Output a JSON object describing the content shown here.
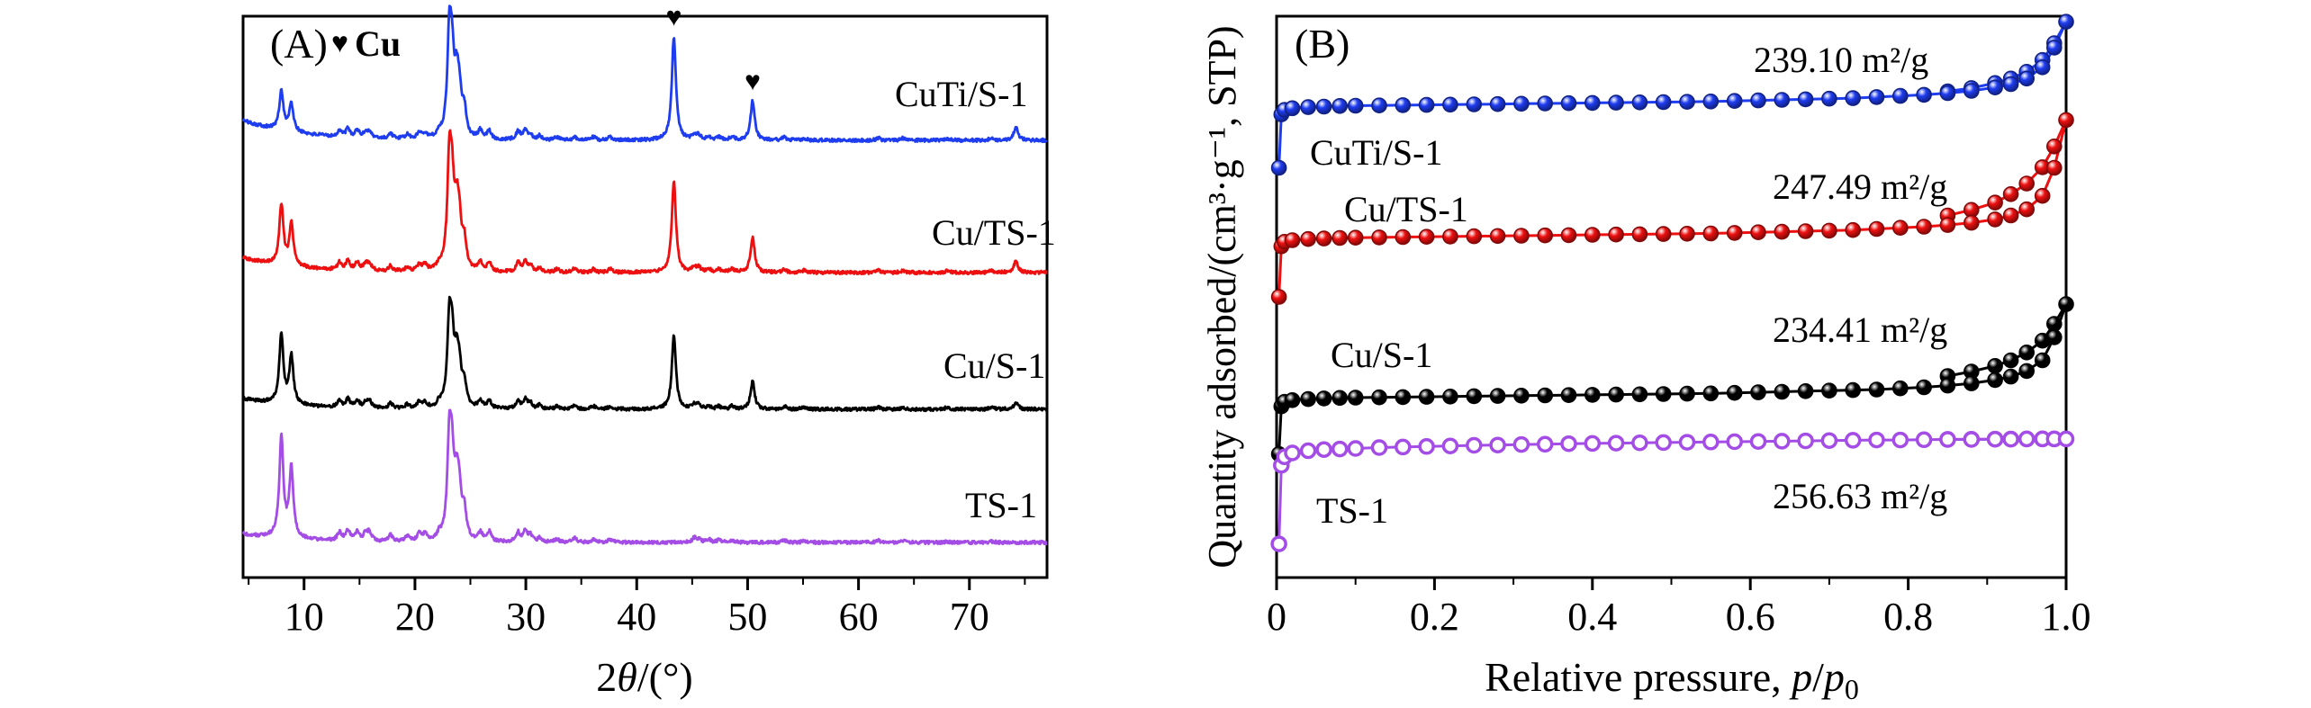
{
  "figure": {
    "background": "#ffffff"
  },
  "chart_data": [
    {
      "panel": "A",
      "type": "line",
      "panel_label": "(A)",
      "legend": {
        "marker": "♥",
        "label": "Cu"
      },
      "xlabel": "2θ/(°)",
      "xlabel_parts": [
        {
          "t": "2"
        },
        {
          "t": "θ",
          "italic": true
        },
        {
          "t": "/(°)"
        }
      ],
      "xlim": [
        4.5,
        77
      ],
      "x_ticks": [
        10,
        20,
        30,
        40,
        50,
        60,
        70
      ],
      "ylabel": "",
      "series": [
        {
          "name": "CuTi/S-1",
          "color": "#1e3cf0",
          "marked_cu_peaks": [
            43.35,
            50.45
          ],
          "peaks": [
            [
              7.95,
              38
            ],
            [
              8.85,
              27
            ],
            [
              13.2,
              6
            ],
            [
              13.95,
              8
            ],
            [
              14.8,
              7
            ],
            [
              15.55,
              5
            ],
            [
              15.9,
              6
            ],
            [
              17.8,
              5
            ],
            [
              19.3,
              4
            ],
            [
              20.4,
              6
            ],
            [
              20.9,
              5
            ],
            [
              22.2,
              5
            ],
            [
              23.1,
              92
            ],
            [
              23.35,
              62
            ],
            [
              23.75,
              44
            ],
            [
              24.0,
              36
            ],
            [
              24.45,
              25
            ],
            [
              25.9,
              8
            ],
            [
              26.7,
              8
            ],
            [
              29.3,
              8
            ],
            [
              29.95,
              9
            ],
            [
              30.4,
              5
            ],
            [
              31.25,
              4
            ],
            [
              32.8,
              3
            ],
            [
              34.4,
              3
            ],
            [
              36.1,
              3
            ],
            [
              37.6,
              3
            ],
            [
              43.35,
              100
            ],
            [
              45.2,
              5
            ],
            [
              45.6,
              4
            ],
            [
              46.5,
              3
            ],
            [
              47.4,
              3
            ],
            [
              48.6,
              3
            ],
            [
              50.45,
              38
            ],
            [
              53.3,
              3
            ],
            [
              55.1,
              2
            ],
            [
              61.8,
              2
            ],
            [
              64.0,
              2
            ],
            [
              68.0,
              2
            ],
            [
              72.0,
              2
            ],
            [
              74.2,
              13
            ]
          ]
        },
        {
          "name": "Cu/TS-1",
          "color": "#ee1010",
          "peaks": [
            [
              7.95,
              58
            ],
            [
              8.85,
              40
            ],
            [
              13.2,
              7
            ],
            [
              13.95,
              9
            ],
            [
              14.8,
              8
            ],
            [
              15.55,
              6
            ],
            [
              15.9,
              7
            ],
            [
              17.8,
              5
            ],
            [
              19.3,
              4
            ],
            [
              20.4,
              6
            ],
            [
              20.9,
              6
            ],
            [
              22.2,
              5
            ],
            [
              23.1,
              95
            ],
            [
              23.35,
              65
            ],
            [
              23.75,
              46
            ],
            [
              24.0,
              38
            ],
            [
              24.45,
              26
            ],
            [
              25.9,
              8
            ],
            [
              26.7,
              9
            ],
            [
              29.3,
              9
            ],
            [
              29.95,
              10
            ],
            [
              30.4,
              6
            ],
            [
              31.25,
              4
            ],
            [
              32.8,
              3
            ],
            [
              34.4,
              4
            ],
            [
              36.1,
              3
            ],
            [
              37.6,
              3
            ],
            [
              43.35,
              88
            ],
            [
              45.2,
              5
            ],
            [
              45.6,
              4
            ],
            [
              46.5,
              3
            ],
            [
              47.4,
              3
            ],
            [
              48.6,
              3
            ],
            [
              50.45,
              34
            ],
            [
              53.3,
              3
            ],
            [
              55.1,
              2
            ],
            [
              61.8,
              2
            ],
            [
              64.0,
              2
            ],
            [
              68.0,
              2
            ],
            [
              72.0,
              2
            ],
            [
              74.2,
              11
            ]
          ]
        },
        {
          "name": "Cu/S-1",
          "color": "#000000",
          "peaks": [
            [
              7.95,
              75
            ],
            [
              8.85,
              52
            ],
            [
              13.2,
              7
            ],
            [
              13.95,
              9
            ],
            [
              14.8,
              8
            ],
            [
              15.55,
              6
            ],
            [
              15.9,
              7
            ],
            [
              17.8,
              5
            ],
            [
              19.3,
              4
            ],
            [
              20.4,
              7
            ],
            [
              20.9,
              6
            ],
            [
              22.2,
              5
            ],
            [
              23.1,
              85
            ],
            [
              23.35,
              60
            ],
            [
              23.75,
              42
            ],
            [
              24.0,
              35
            ],
            [
              24.45,
              24
            ],
            [
              25.9,
              8
            ],
            [
              26.7,
              9
            ],
            [
              29.3,
              9
            ],
            [
              29.95,
              10
            ],
            [
              30.4,
              6
            ],
            [
              31.25,
              4
            ],
            [
              32.8,
              3
            ],
            [
              34.4,
              4
            ],
            [
              36.1,
              3
            ],
            [
              37.6,
              3
            ],
            [
              43.35,
              80
            ],
            [
              45.2,
              5
            ],
            [
              45.6,
              4
            ],
            [
              46.5,
              3
            ],
            [
              47.4,
              3
            ],
            [
              48.6,
              3
            ],
            [
              50.45,
              30
            ],
            [
              53.3,
              3
            ],
            [
              55.1,
              2
            ],
            [
              61.8,
              2
            ],
            [
              64.0,
              2
            ],
            [
              68.0,
              2
            ],
            [
              72.0,
              2
            ],
            [
              74.2,
              8
            ]
          ]
        },
        {
          "name": "TS-1",
          "color": "#a44ce6",
          "peaks": [
            [
              7.95,
              95
            ],
            [
              8.85,
              66
            ],
            [
              13.2,
              8
            ],
            [
              13.95,
              10
            ],
            [
              14.8,
              9
            ],
            [
              15.55,
              7
            ],
            [
              15.9,
              8
            ],
            [
              17.8,
              6
            ],
            [
              19.3,
              5
            ],
            [
              20.4,
              7
            ],
            [
              20.9,
              6
            ],
            [
              22.2,
              5
            ],
            [
              23.1,
              88
            ],
            [
              23.35,
              62
            ],
            [
              23.75,
              44
            ],
            [
              24.0,
              36
            ],
            [
              24.45,
              25
            ],
            [
              25.9,
              8
            ],
            [
              26.7,
              9
            ],
            [
              29.3,
              9
            ],
            [
              29.95,
              10
            ],
            [
              30.4,
              6
            ],
            [
              31.25,
              4
            ],
            [
              32.8,
              3
            ],
            [
              34.4,
              4
            ],
            [
              36.1,
              3
            ],
            [
              37.6,
              3
            ],
            [
              45.2,
              4
            ],
            [
              45.6,
              3
            ],
            [
              46.5,
              3
            ],
            [
              47.4,
              2
            ],
            [
              48.6,
              2
            ],
            [
              53.3,
              2
            ],
            [
              55.1,
              2
            ],
            [
              61.8,
              2
            ],
            [
              64.0,
              2
            ],
            [
              68.0,
              1
            ],
            [
              72.0,
              1
            ]
          ]
        }
      ]
    },
    {
      "panel": "B",
      "type": "scatter",
      "panel_label": "(B)",
      "xlabel": "Relative pressure, p/p₀",
      "xlabel_parts": [
        {
          "t": "Relative pressure, "
        },
        {
          "t": "p",
          "italic": true
        },
        {
          "t": "/"
        },
        {
          "t": "p",
          "italic": true
        },
        {
          "t": "0",
          "sub": true
        }
      ],
      "ylabel": "Quantity adsorbed/(cm³·g⁻¹, STP)",
      "xlim": [
        0,
        1
      ],
      "x_ticks": [
        0,
        0.2,
        0.4,
        0.6,
        0.8,
        1.0
      ],
      "x_tick_labels": [
        "0",
        "0.2",
        "0.4",
        "0.6",
        "0.8",
        "1.0"
      ],
      "p": [
        0.003,
        0.006,
        0.01,
        0.02,
        0.04,
        0.06,
        0.08,
        0.1,
        0.13,
        0.16,
        0.19,
        0.22,
        0.25,
        0.28,
        0.31,
        0.34,
        0.37,
        0.4,
        0.43,
        0.46,
        0.49,
        0.52,
        0.55,
        0.58,
        0.61,
        0.64,
        0.67,
        0.7,
        0.73,
        0.76,
        0.79,
        0.82,
        0.85,
        0.88,
        0.91,
        0.93,
        0.95,
        0.97,
        0.985,
        1.0
      ],
      "p_desorption": [
        1.0,
        0.985,
        0.97,
        0.95,
        0.93,
        0.91,
        0.88,
        0.85
      ],
      "series": [
        {
          "name": "CuTi/S-1",
          "surface_area": "239.10 m²/g",
          "color": "#1e3cf0",
          "q": [
            0.73,
            0.825,
            0.833,
            0.836,
            0.838,
            0.839,
            0.84,
            0.8405,
            0.841,
            0.8415,
            0.842,
            0.8425,
            0.843,
            0.8435,
            0.844,
            0.8445,
            0.845,
            0.8455,
            0.846,
            0.8465,
            0.847,
            0.8475,
            0.848,
            0.849,
            0.85,
            0.851,
            0.852,
            0.853,
            0.854,
            0.856,
            0.858,
            0.86,
            0.863,
            0.867,
            0.873,
            0.879,
            0.889,
            0.909,
            0.944,
            0.99
          ],
          "q_desorption": [
            0.99,
            0.952,
            0.922,
            0.901,
            0.889,
            0.881,
            0.872,
            0.866
          ]
        },
        {
          "name": "Cu/TS-1",
          "surface_area": "247.49 m²/g",
          "color": "#ee1010",
          "q": [
            0.5,
            0.59,
            0.598,
            0.601,
            0.603,
            0.604,
            0.605,
            0.6055,
            0.606,
            0.6065,
            0.607,
            0.6075,
            0.608,
            0.6085,
            0.609,
            0.6095,
            0.61,
            0.6105,
            0.611,
            0.6115,
            0.612,
            0.6125,
            0.613,
            0.614,
            0.615,
            0.616,
            0.617,
            0.618,
            0.619,
            0.621,
            0.623,
            0.625,
            0.628,
            0.632,
            0.638,
            0.645,
            0.656,
            0.68,
            0.73,
            0.815
          ],
          "q_desorption": [
            0.815,
            0.768,
            0.731,
            0.702,
            0.683,
            0.668,
            0.655,
            0.645
          ]
        },
        {
          "name": "Cu/S-1",
          "surface_area": "234.41 m²/g",
          "color": "#000000",
          "q": [
            0.22,
            0.305,
            0.313,
            0.316,
            0.318,
            0.319,
            0.32,
            0.3205,
            0.321,
            0.3215,
            0.322,
            0.3225,
            0.323,
            0.3235,
            0.324,
            0.3245,
            0.325,
            0.3255,
            0.326,
            0.3265,
            0.327,
            0.3275,
            0.328,
            0.329,
            0.33,
            0.331,
            0.332,
            0.333,
            0.334,
            0.335,
            0.337,
            0.339,
            0.342,
            0.346,
            0.352,
            0.358,
            0.368,
            0.387,
            0.428,
            0.487
          ],
          "q_desorption": [
            0.487,
            0.452,
            0.422,
            0.401,
            0.387,
            0.377,
            0.367,
            0.359
          ]
        },
        {
          "name": "TS-1",
          "surface_area": "256.63 m²/g",
          "color": "#a44ce6",
          "marker_style": "open",
          "q": [
            0.06,
            0.2,
            0.215,
            0.222,
            0.226,
            0.228,
            0.229,
            0.23,
            0.2315,
            0.2325,
            0.2335,
            0.2345,
            0.2355,
            0.236,
            0.237,
            0.2375,
            0.2385,
            0.239,
            0.2395,
            0.24,
            0.2405,
            0.241,
            0.2415,
            0.242,
            0.2425,
            0.243,
            0.2435,
            0.244,
            0.2445,
            0.245,
            0.245,
            0.2455,
            0.246,
            0.246,
            0.2465,
            0.2465,
            0.247,
            0.247,
            0.247,
            0.247
          ],
          "q_desorption": [
            0.247,
            0.247,
            0.247,
            0.2468,
            0.2468,
            0.2466,
            0.2464,
            0.2462
          ]
        }
      ]
    }
  ]
}
